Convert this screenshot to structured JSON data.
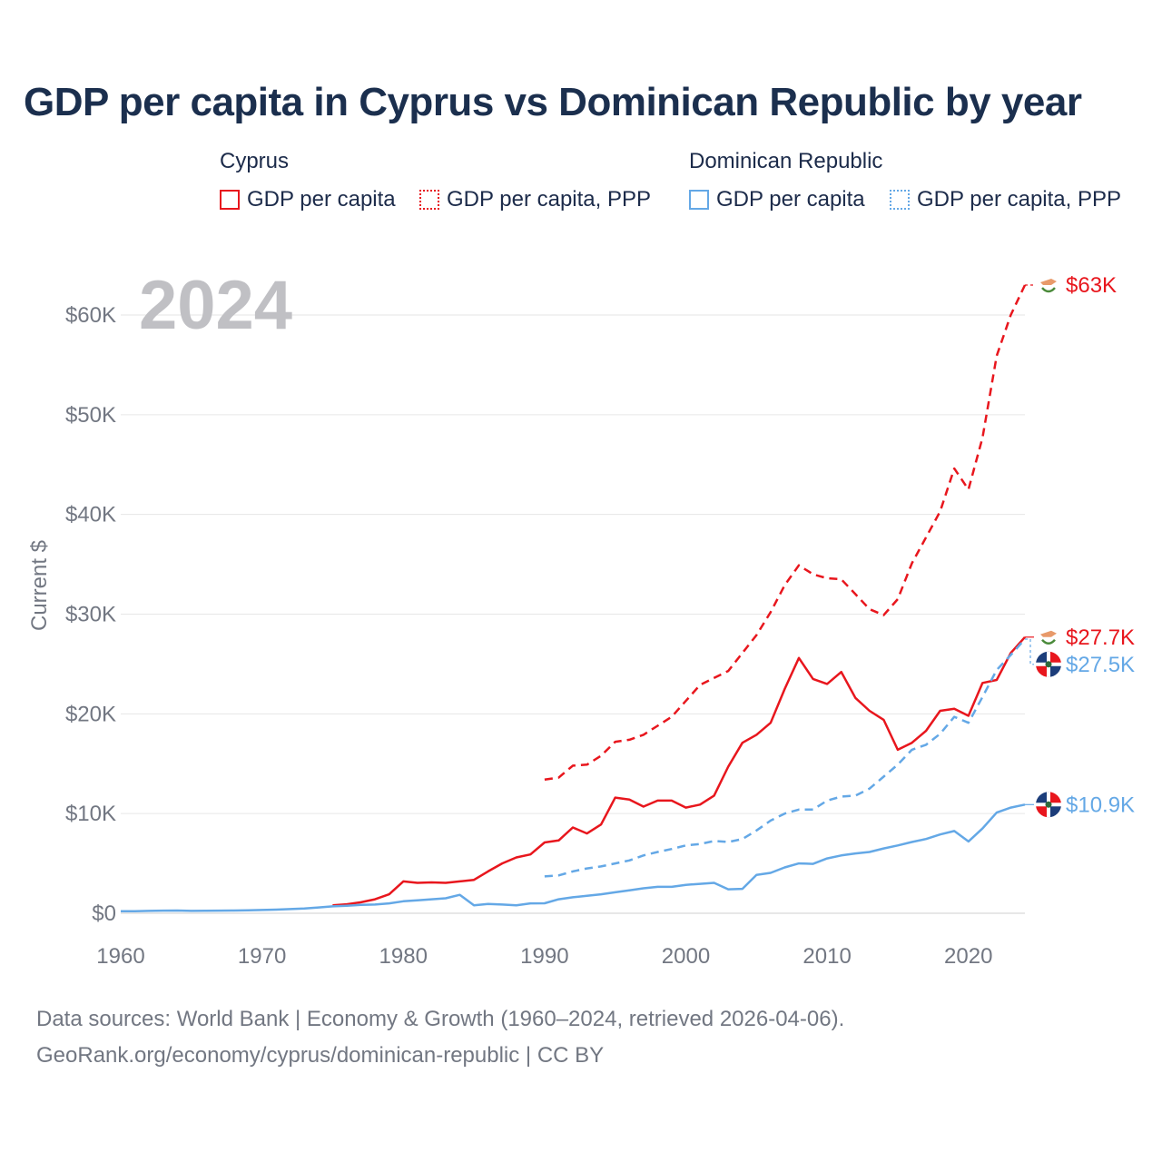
{
  "title": "GDP per capita in Cyprus vs Dominican Republic by year",
  "legend": {
    "groups": [
      {
        "name": "Cyprus",
        "items": [
          "GDP per capita",
          "GDP per capita, PPP"
        ]
      },
      {
        "name": "Dominican Republic",
        "items": [
          "GDP per capita",
          "GDP per capita, PPP"
        ]
      }
    ]
  },
  "year_watermark": "2024",
  "footer": {
    "sources": "Data sources: World Bank | Economy & Growth (1960–2024, retrieved 2026-04-06).",
    "link": "GeoRank.org/economy/cyprus/dominican-republic | CC BY"
  },
  "colors": {
    "cyprus": "#e8161d",
    "dominican_republic": "#64a8e6",
    "grid": "#e6e6e6",
    "axis_text": "#727782",
    "watermark": "#c0c0c4"
  },
  "chart_data": {
    "type": "line",
    "ylabel": "Current $",
    "xlabel": "",
    "xlim": [
      1960,
      2024
    ],
    "ylim": [
      0,
      60000
    ],
    "x_ticks": [
      1960,
      1970,
      1980,
      1990,
      2000,
      2010,
      2020
    ],
    "y_ticks": [
      {
        "value": 0,
        "label": "$0"
      },
      {
        "value": 10000,
        "label": "$10K"
      },
      {
        "value": 20000,
        "label": "$20K"
      },
      {
        "value": 30000,
        "label": "$30K"
      },
      {
        "value": 40000,
        "label": "$40K"
      },
      {
        "value": 50000,
        "label": "$50K"
      },
      {
        "value": 60000,
        "label": "$60K"
      }
    ],
    "series": [
      {
        "name": "Cyprus GDP per capita",
        "country": "cyprus",
        "dash": "solid",
        "end_label": "$27.7K",
        "points": [
          [
            1975,
            800
          ],
          [
            1976,
            900
          ],
          [
            1977,
            1100
          ],
          [
            1978,
            1400
          ],
          [
            1979,
            1900
          ],
          [
            1980,
            3200
          ],
          [
            1981,
            3050
          ],
          [
            1982,
            3100
          ],
          [
            1983,
            3050
          ],
          [
            1984,
            3200
          ],
          [
            1985,
            3350
          ],
          [
            1986,
            4200
          ],
          [
            1987,
            5000
          ],
          [
            1988,
            5600
          ],
          [
            1989,
            5900
          ],
          [
            1990,
            7100
          ],
          [
            1991,
            7300
          ],
          [
            1992,
            8600
          ],
          [
            1993,
            8000
          ],
          [
            1994,
            8900
          ],
          [
            1995,
            11600
          ],
          [
            1996,
            11400
          ],
          [
            1997,
            10700
          ],
          [
            1998,
            11300
          ],
          [
            1999,
            11300
          ],
          [
            2000,
            10600
          ],
          [
            2001,
            10900
          ],
          [
            2002,
            11800
          ],
          [
            2003,
            14700
          ],
          [
            2004,
            17100
          ],
          [
            2005,
            17900
          ],
          [
            2006,
            19100
          ],
          [
            2007,
            22500
          ],
          [
            2008,
            25600
          ],
          [
            2009,
            23500
          ],
          [
            2010,
            23000
          ],
          [
            2011,
            24200
          ],
          [
            2012,
            21600
          ],
          [
            2013,
            20300
          ],
          [
            2014,
            19400
          ],
          [
            2015,
            16400
          ],
          [
            2016,
            17100
          ],
          [
            2017,
            18300
          ],
          [
            2018,
            20300
          ],
          [
            2019,
            20500
          ],
          [
            2020,
            19800
          ],
          [
            2021,
            23100
          ],
          [
            2022,
            23400
          ],
          [
            2023,
            26100
          ],
          [
            2024,
            27700
          ]
        ]
      },
      {
        "name": "Cyprus GDP per capita, PPP",
        "country": "cyprus",
        "dash": "dashed",
        "end_label": "$63K",
        "points": [
          [
            1990,
            13400
          ],
          [
            1991,
            13600
          ],
          [
            1992,
            14800
          ],
          [
            1993,
            14900
          ],
          [
            1994,
            15800
          ],
          [
            1995,
            17200
          ],
          [
            1996,
            17400
          ],
          [
            1997,
            17900
          ],
          [
            1998,
            18800
          ],
          [
            1999,
            19700
          ],
          [
            2000,
            21300
          ],
          [
            2001,
            22900
          ],
          [
            2002,
            23600
          ],
          [
            2003,
            24300
          ],
          [
            2004,
            26100
          ],
          [
            2005,
            27900
          ],
          [
            2006,
            30200
          ],
          [
            2007,
            32900
          ],
          [
            2008,
            34900
          ],
          [
            2009,
            34000
          ],
          [
            2010,
            33600
          ],
          [
            2011,
            33500
          ],
          [
            2012,
            32000
          ],
          [
            2013,
            30500
          ],
          [
            2014,
            29900
          ],
          [
            2015,
            31500
          ],
          [
            2016,
            35100
          ],
          [
            2017,
            37700
          ],
          [
            2018,
            40300
          ],
          [
            2019,
            44600
          ],
          [
            2020,
            42500
          ],
          [
            2021,
            47700
          ],
          [
            2022,
            55900
          ],
          [
            2023,
            60000
          ],
          [
            2024,
            63000
          ]
        ]
      },
      {
        "name": "Dominican Republic GDP per capita",
        "country": "dominican_republic",
        "dash": "solid",
        "end_label": "$10.9K",
        "points": [
          [
            1960,
            200
          ],
          [
            1961,
            210
          ],
          [
            1962,
            240
          ],
          [
            1963,
            260
          ],
          [
            1964,
            270
          ],
          [
            1965,
            240
          ],
          [
            1966,
            250
          ],
          [
            1967,
            260
          ],
          [
            1968,
            270
          ],
          [
            1969,
            290
          ],
          [
            1970,
            330
          ],
          [
            1971,
            360
          ],
          [
            1972,
            420
          ],
          [
            1973,
            480
          ],
          [
            1974,
            580
          ],
          [
            1975,
            690
          ],
          [
            1976,
            760
          ],
          [
            1977,
            840
          ],
          [
            1978,
            870
          ],
          [
            1979,
            990
          ],
          [
            1980,
            1200
          ],
          [
            1981,
            1300
          ],
          [
            1982,
            1400
          ],
          [
            1983,
            1500
          ],
          [
            1984,
            1850
          ],
          [
            1985,
            800
          ],
          [
            1986,
            930
          ],
          [
            1987,
            870
          ],
          [
            1988,
            790
          ],
          [
            1989,
            990
          ],
          [
            1990,
            1000
          ],
          [
            1991,
            1400
          ],
          [
            1992,
            1600
          ],
          [
            1993,
            1750
          ],
          [
            1994,
            1900
          ],
          [
            1995,
            2100
          ],
          [
            1996,
            2300
          ],
          [
            1997,
            2500
          ],
          [
            1998,
            2650
          ],
          [
            1999,
            2650
          ],
          [
            2000,
            2850
          ],
          [
            2001,
            2950
          ],
          [
            2002,
            3050
          ],
          [
            2003,
            2400
          ],
          [
            2004,
            2450
          ],
          [
            2005,
            3850
          ],
          [
            2006,
            4050
          ],
          [
            2007,
            4600
          ],
          [
            2008,
            5000
          ],
          [
            2009,
            4950
          ],
          [
            2010,
            5500
          ],
          [
            2011,
            5800
          ],
          [
            2012,
            6000
          ],
          [
            2013,
            6150
          ],
          [
            2014,
            6500
          ],
          [
            2015,
            6800
          ],
          [
            2016,
            7150
          ],
          [
            2017,
            7450
          ],
          [
            2018,
            7900
          ],
          [
            2019,
            8250
          ],
          [
            2020,
            7200
          ],
          [
            2021,
            8500
          ],
          [
            2022,
            10100
          ],
          [
            2023,
            10600
          ],
          [
            2024,
            10900
          ]
        ]
      },
      {
        "name": "Dominican Republic GDP per capita, PPP",
        "country": "dominican_republic",
        "dash": "dashed",
        "end_label": "$27.5K",
        "points": [
          [
            1990,
            3700
          ],
          [
            1991,
            3800
          ],
          [
            1992,
            4200
          ],
          [
            1993,
            4500
          ],
          [
            1994,
            4700
          ],
          [
            1995,
            5000
          ],
          [
            1996,
            5300
          ],
          [
            1997,
            5800
          ],
          [
            1998,
            6150
          ],
          [
            1999,
            6450
          ],
          [
            2000,
            6800
          ],
          [
            2001,
            6950
          ],
          [
            2002,
            7250
          ],
          [
            2003,
            7150
          ],
          [
            2004,
            7450
          ],
          [
            2005,
            8300
          ],
          [
            2006,
            9300
          ],
          [
            2007,
            10000
          ],
          [
            2008,
            10400
          ],
          [
            2009,
            10400
          ],
          [
            2010,
            11300
          ],
          [
            2011,
            11700
          ],
          [
            2012,
            11800
          ],
          [
            2013,
            12500
          ],
          [
            2014,
            13700
          ],
          [
            2015,
            14900
          ],
          [
            2016,
            16400
          ],
          [
            2017,
            16900
          ],
          [
            2018,
            18000
          ],
          [
            2019,
            19700
          ],
          [
            2020,
            19100
          ],
          [
            2021,
            21700
          ],
          [
            2022,
            24400
          ],
          [
            2023,
            25900
          ],
          [
            2024,
            27500
          ]
        ]
      }
    ]
  }
}
